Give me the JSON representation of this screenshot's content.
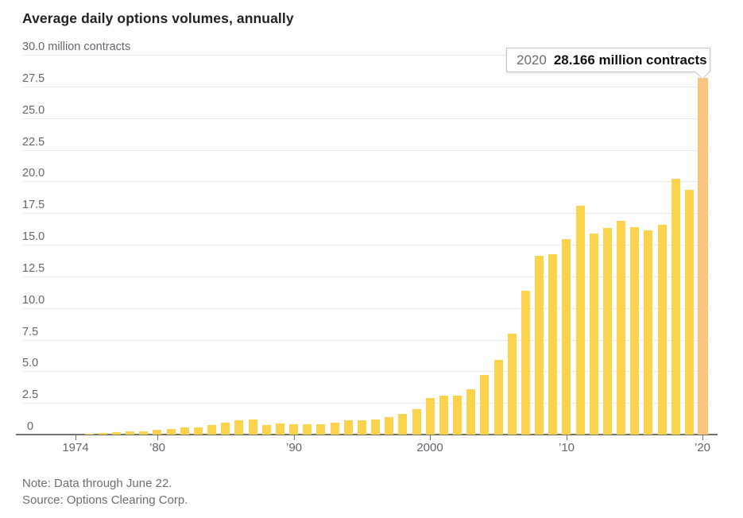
{
  "title": "Average daily options volumes, annually",
  "tooltip": {
    "year": "2020",
    "value": "28.166 million contracts"
  },
  "footer": {
    "note": "Note: Data through June 22.",
    "source": "Source: Options Clearing Corp."
  },
  "colors": {
    "bar": "#FCD34D",
    "bar_highlight": "#F9C57E",
    "grid": "#e9e9e9",
    "axis": "#73736e"
  },
  "chart_data": {
    "type": "bar",
    "title": "Average daily options volumes, annually",
    "ylabel": "million contracts",
    "ylim": [
      0,
      30
    ],
    "grid": "horizontal",
    "highlight_x": 2020,
    "x": [
      1974,
      1975,
      1976,
      1977,
      1978,
      1979,
      1980,
      1981,
      1982,
      1983,
      1984,
      1985,
      1986,
      1987,
      1988,
      1989,
      1990,
      1991,
      1992,
      1993,
      1994,
      1995,
      1996,
      1997,
      1998,
      1999,
      2000,
      2001,
      2002,
      2003,
      2004,
      2005,
      2006,
      2007,
      2008,
      2009,
      2010,
      2011,
      2012,
      2013,
      2014,
      2015,
      2016,
      2017,
      2018,
      2019,
      2020
    ],
    "values": [
      0.02,
      0.07,
      0.13,
      0.16,
      0.23,
      0.26,
      0.38,
      0.43,
      0.54,
      0.54,
      0.78,
      0.92,
      1.15,
      1.21,
      0.78,
      0.9,
      0.83,
      0.79,
      0.8,
      0.92,
      1.12,
      1.14,
      1.17,
      1.4,
      1.61,
      2.01,
      2.88,
      3.1,
      3.1,
      3.55,
      4.69,
      5.9,
      7.95,
      11.35,
      14.1,
      14.25,
      15.45,
      18.05,
      15.85,
      16.3,
      16.9,
      16.4,
      16.1,
      16.6,
      20.2,
      19.3,
      28.166
    ],
    "yticks": [
      0,
      2.5,
      5,
      7.5,
      10,
      12.5,
      15,
      17.5,
      20,
      22.5,
      25,
      27.5,
      30
    ],
    "ytick_labels": [
      "0",
      "2.5",
      "5.0",
      "7.5",
      "10.0",
      "12.5",
      "15.0",
      "17.5",
      "20.0",
      "22.5",
      "25.0",
      "27.5",
      "30.0 million contracts"
    ],
    "xticks": [
      {
        "year": 1974,
        "label": "1974"
      },
      {
        "year": 1980,
        "label": "’80"
      },
      {
        "year": 1990,
        "label": "’90"
      },
      {
        "year": 2000,
        "label": "2000"
      },
      {
        "year": 2010,
        "label": "’10"
      },
      {
        "year": 2020,
        "label": "’20"
      }
    ]
  }
}
